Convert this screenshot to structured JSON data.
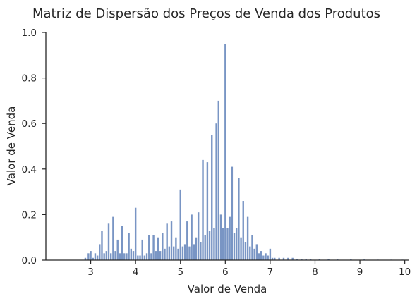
{
  "chart_data": {
    "type": "bar",
    "title": "Matriz de Dispersão dos Preços de Venda dos Produtos",
    "xlabel": "Valor de Venda",
    "ylabel": "Valor de Venda",
    "xlim": [
      2.0,
      10.1
    ],
    "ylim": [
      0,
      1.0
    ],
    "x_ticks": [
      3,
      4,
      5,
      6,
      7,
      8,
      9,
      10
    ],
    "x_tick_labels": [
      "3",
      "4",
      "5",
      "6",
      "7",
      "8",
      "9",
      "10"
    ],
    "y_ticks": [
      0,
      0.2,
      0.4,
      0.6,
      0.8,
      1.0
    ],
    "y_tick_labels": [
      "0.0",
      "0.2",
      "0.4",
      "0.6",
      "0.8",
      "1.0"
    ],
    "grid": false,
    "color": "#4c72b0",
    "bins": [
      {
        "x": 2.88,
        "y": 0.01
      },
      {
        "x": 2.95,
        "y": 0.03
      },
      {
        "x": 3.0,
        "y": 0.04
      },
      {
        "x": 3.05,
        "y": 0.01
      },
      {
        "x": 3.1,
        "y": 0.03
      },
      {
        "x": 3.15,
        "y": 0.02
      },
      {
        "x": 3.2,
        "y": 0.07
      },
      {
        "x": 3.25,
        "y": 0.13
      },
      {
        "x": 3.3,
        "y": 0.03
      },
      {
        "x": 3.35,
        "y": 0.04
      },
      {
        "x": 3.4,
        "y": 0.16
      },
      {
        "x": 3.45,
        "y": 0.03
      },
      {
        "x": 3.5,
        "y": 0.19
      },
      {
        "x": 3.55,
        "y": 0.04
      },
      {
        "x": 3.6,
        "y": 0.09
      },
      {
        "x": 3.65,
        "y": 0.03
      },
      {
        "x": 3.7,
        "y": 0.15
      },
      {
        "x": 3.75,
        "y": 0.03
      },
      {
        "x": 3.8,
        "y": 0.03
      },
      {
        "x": 3.85,
        "y": 0.12
      },
      {
        "x": 3.9,
        "y": 0.05
      },
      {
        "x": 3.95,
        "y": 0.04
      },
      {
        "x": 4.0,
        "y": 0.23
      },
      {
        "x": 4.05,
        "y": 0.02
      },
      {
        "x": 4.1,
        "y": 0.02
      },
      {
        "x": 4.15,
        "y": 0.09
      },
      {
        "x": 4.2,
        "y": 0.02
      },
      {
        "x": 4.25,
        "y": 0.03
      },
      {
        "x": 4.3,
        "y": 0.11
      },
      {
        "x": 4.35,
        "y": 0.03
      },
      {
        "x": 4.4,
        "y": 0.11
      },
      {
        "x": 4.45,
        "y": 0.04
      },
      {
        "x": 4.5,
        "y": 0.1
      },
      {
        "x": 4.55,
        "y": 0.04
      },
      {
        "x": 4.6,
        "y": 0.12
      },
      {
        "x": 4.65,
        "y": 0.05
      },
      {
        "x": 4.7,
        "y": 0.16
      },
      {
        "x": 4.75,
        "y": 0.06
      },
      {
        "x": 4.8,
        "y": 0.17
      },
      {
        "x": 4.85,
        "y": 0.06
      },
      {
        "x": 4.9,
        "y": 0.1
      },
      {
        "x": 4.95,
        "y": 0.05
      },
      {
        "x": 5.0,
        "y": 0.31
      },
      {
        "x": 5.05,
        "y": 0.06
      },
      {
        "x": 5.1,
        "y": 0.07
      },
      {
        "x": 5.15,
        "y": 0.17
      },
      {
        "x": 5.2,
        "y": 0.06
      },
      {
        "x": 5.25,
        "y": 0.2
      },
      {
        "x": 5.3,
        "y": 0.07
      },
      {
        "x": 5.35,
        "y": 0.1
      },
      {
        "x": 5.4,
        "y": 0.21
      },
      {
        "x": 5.45,
        "y": 0.08
      },
      {
        "x": 5.5,
        "y": 0.44
      },
      {
        "x": 5.55,
        "y": 0.11
      },
      {
        "x": 5.6,
        "y": 0.43
      },
      {
        "x": 5.65,
        "y": 0.13
      },
      {
        "x": 5.7,
        "y": 0.55
      },
      {
        "x": 5.75,
        "y": 0.14
      },
      {
        "x": 5.8,
        "y": 0.6
      },
      {
        "x": 5.85,
        "y": 0.7
      },
      {
        "x": 5.9,
        "y": 0.2
      },
      {
        "x": 5.95,
        "y": 0.14
      },
      {
        "x": 6.0,
        "y": 0.95
      },
      {
        "x": 6.05,
        "y": 0.14
      },
      {
        "x": 6.1,
        "y": 0.19
      },
      {
        "x": 6.15,
        "y": 0.41
      },
      {
        "x": 6.2,
        "y": 0.12
      },
      {
        "x": 6.25,
        "y": 0.14
      },
      {
        "x": 6.3,
        "y": 0.36
      },
      {
        "x": 6.35,
        "y": 0.1
      },
      {
        "x": 6.4,
        "y": 0.26
      },
      {
        "x": 6.45,
        "y": 0.08
      },
      {
        "x": 6.5,
        "y": 0.19
      },
      {
        "x": 6.55,
        "y": 0.06
      },
      {
        "x": 6.6,
        "y": 0.11
      },
      {
        "x": 6.65,
        "y": 0.05
      },
      {
        "x": 6.7,
        "y": 0.07
      },
      {
        "x": 6.75,
        "y": 0.03
      },
      {
        "x": 6.8,
        "y": 0.04
      },
      {
        "x": 6.85,
        "y": 0.02
      },
      {
        "x": 6.9,
        "y": 0.03
      },
      {
        "x": 6.95,
        "y": 0.02
      },
      {
        "x": 7.0,
        "y": 0.05
      },
      {
        "x": 7.05,
        "y": 0.01
      },
      {
        "x": 7.1,
        "y": 0.01
      },
      {
        "x": 7.2,
        "y": 0.01
      },
      {
        "x": 7.3,
        "y": 0.01
      },
      {
        "x": 7.4,
        "y": 0.01
      },
      {
        "x": 7.5,
        "y": 0.01
      },
      {
        "x": 7.6,
        "y": 0.005
      },
      {
        "x": 7.7,
        "y": 0.005
      },
      {
        "x": 7.8,
        "y": 0.005
      },
      {
        "x": 7.9,
        "y": 0.005
      },
      {
        "x": 8.1,
        "y": 0.004
      },
      {
        "x": 8.3,
        "y": 0.004
      },
      {
        "x": 8.5,
        "y": 0.003
      },
      {
        "x": 8.8,
        "y": 0.003
      },
      {
        "x": 9.1,
        "y": 0.003
      },
      {
        "x": 9.4,
        "y": 0.002
      },
      {
        "x": 9.7,
        "y": 0.002
      },
      {
        "x": 9.95,
        "y": 0.002
      }
    ]
  }
}
